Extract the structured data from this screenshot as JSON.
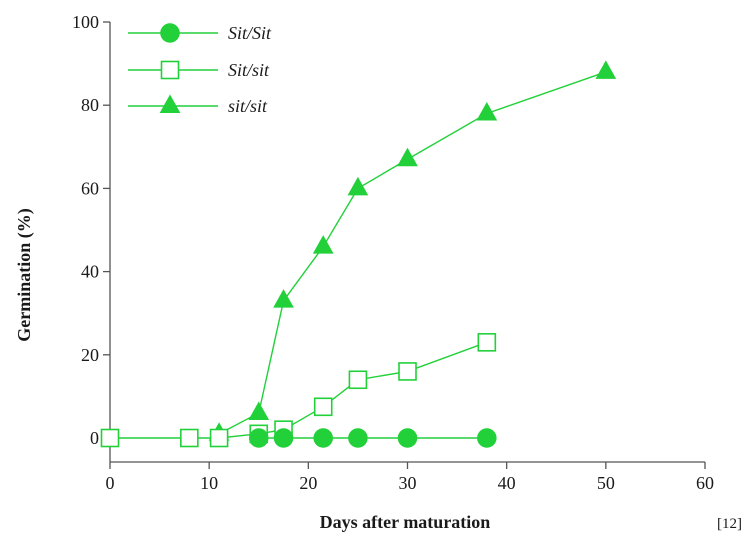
{
  "chart_data": {
    "type": "line",
    "xlabel": "Days after maturation",
    "ylabel": "Germination (%)",
    "xlim": [
      0,
      60
    ],
    "ylim": [
      0,
      100
    ],
    "xticks": [
      "0",
      "10",
      "20",
      "30",
      "40",
      "50",
      "60"
    ],
    "yticks": [
      "0",
      "20",
      "40",
      "60",
      "80",
      "100"
    ],
    "grid": false,
    "legend_position": "top-left",
    "series": [
      {
        "name": "Sit/Sit",
        "marker": "filled-circle",
        "color": "#22d13a",
        "x": [
          15,
          17.5,
          21.5,
          25,
          30,
          38
        ],
        "y": [
          0,
          0,
          0,
          0,
          0,
          0
        ]
      },
      {
        "name": "Sit/sit",
        "marker": "open-square",
        "color": "#22d13a",
        "x": [
          0,
          8,
          11,
          15,
          17.5,
          21.5,
          25,
          30,
          38
        ],
        "y": [
          0,
          0,
          0,
          1,
          2,
          7.5,
          14,
          16,
          23
        ]
      },
      {
        "name": "sit/sit",
        "marker": "filled-triangle",
        "color": "#22d13a",
        "x": [
          11,
          15,
          17.5,
          21.5,
          25,
          30,
          38,
          50
        ],
        "y": [
          1,
          6,
          33,
          46,
          60,
          67,
          78,
          88
        ]
      }
    ]
  },
  "reference": "[12]"
}
